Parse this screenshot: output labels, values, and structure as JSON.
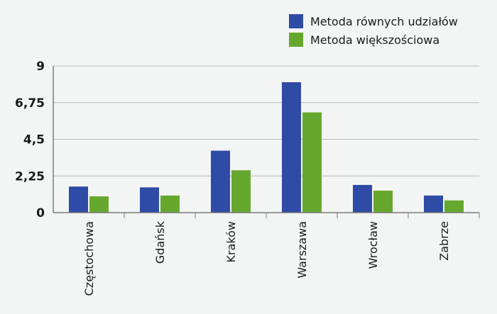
{
  "chart_data": {
    "type": "bar",
    "categories": [
      "Częstochowa",
      "Gdańsk",
      "Kraków",
      "Warszawa",
      "Wrocław",
      "Zabrze"
    ],
    "series": [
      {
        "name": "Metoda równych udziałów",
        "color": "#2e4ba6",
        "values": [
          1.6,
          1.55,
          3.8,
          8.0,
          1.7,
          1.05
        ]
      },
      {
        "name": "Metoda większościowa",
        "color": "#66a82e",
        "values": [
          1.0,
          1.05,
          2.6,
          6.15,
          1.35,
          0.75
        ]
      }
    ],
    "yticks": [
      "0",
      "2,25",
      "4,5",
      "6,75",
      "9"
    ],
    "ylim": [
      0,
      9
    ],
    "grid": true,
    "legend_position": "top-right",
    "title": "",
    "xlabel": "",
    "ylabel": ""
  }
}
